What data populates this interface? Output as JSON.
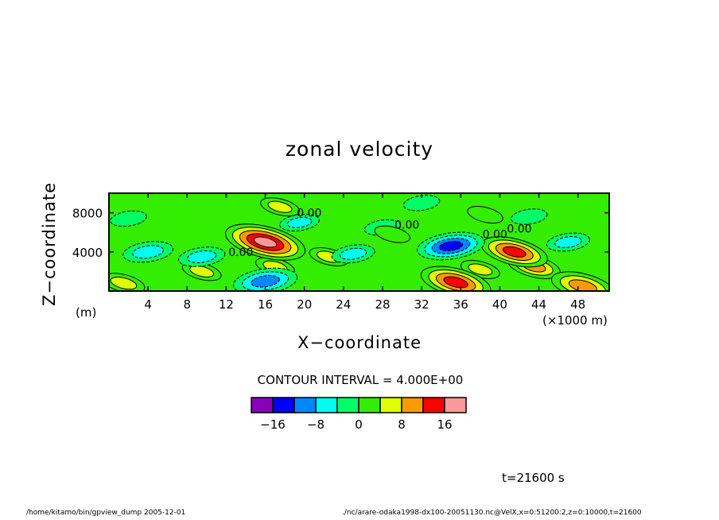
{
  "chart_data": {
    "type": "heatmap",
    "title": "zonal velocity",
    "xlabel": "X−coordinate",
    "ylabel": "Z−coordinate",
    "x_unit": "(×1000 m)",
    "y_unit": "(m)",
    "xlim": [
      0,
      51.2
    ],
    "ylim": [
      0,
      10000
    ],
    "x_ticks": [
      4,
      8,
      12,
      16,
      20,
      24,
      28,
      32,
      36,
      40,
      44,
      48
    ],
    "y_ticks": [
      4000,
      8000
    ],
    "contour_interval_text": "CONTOUR INTERVAL = 4.000E+00",
    "contour_labels": [
      "0.00",
      "0.00",
      "0.00",
      "0.00",
      "0.00"
    ],
    "colorbar": {
      "levels": [
        -20,
        -16,
        -12,
        -8,
        -4,
        0,
        4,
        8,
        12,
        16,
        20
      ],
      "colors": [
        "#8800bb",
        "#0000ff",
        "#0088ff",
        "#00ffee",
        "#00ff66",
        "#33ee00",
        "#ddff00",
        "#ff9900",
        "#ff0000",
        "#ff9999"
      ],
      "tick_values": [
        -16,
        -8,
        0,
        8,
        16
      ],
      "tick_labels": [
        "−16",
        "−8",
        "0",
        "8",
        "16"
      ]
    },
    "features": [
      {
        "x": 16.0,
        "z": 5000,
        "value": 17
      },
      {
        "x": 15.0,
        "z": 5500,
        "value": 10
      },
      {
        "x": 41.5,
        "z": 4000,
        "value": 13
      },
      {
        "x": 43.5,
        "z": 2500,
        "value": 9
      },
      {
        "x": 35.5,
        "z": 900,
        "value": 14
      },
      {
        "x": 48.5,
        "z": 500,
        "value": 12
      },
      {
        "x": 16.0,
        "z": 1000,
        "value": -12
      },
      {
        "x": 35.0,
        "z": 4600,
        "value": -13
      },
      {
        "x": 4.0,
        "z": 4000,
        "value": -8
      },
      {
        "x": 9.5,
        "z": 3500,
        "value": -7
      },
      {
        "x": 25.0,
        "z": 3800,
        "value": -6
      },
      {
        "x": 47.0,
        "z": 5000,
        "value": -6
      },
      {
        "x": 2.0,
        "z": 7400,
        "value": -4
      },
      {
        "x": 19.5,
        "z": 7000,
        "value": -5
      },
      {
        "x": 28.0,
        "z": 6500,
        "value": -4
      },
      {
        "x": 43.0,
        "z": 7600,
        "value": -4
      },
      {
        "x": 32.0,
        "z": 9000,
        "value": -4
      },
      {
        "x": 9.5,
        "z": 2000,
        "value": 5
      },
      {
        "x": 17.0,
        "z": 2500,
        "value": 5
      },
      {
        "x": 22.5,
        "z": 3500,
        "value": 5
      },
      {
        "x": 38.0,
        "z": 2200,
        "value": 5
      },
      {
        "x": 1.5,
        "z": 800,
        "value": 6
      },
      {
        "x": 29.0,
        "z": 5800,
        "value": 4
      },
      {
        "x": 17.5,
        "z": 8600,
        "value": 5
      },
      {
        "x": 38.5,
        "z": 7800,
        "value": 4
      }
    ]
  },
  "footer": {
    "time": "t=21600 s",
    "left": "/home/kitamo/bin/gpview_dump   2005-12-01",
    "right": "./nc/arare-odaka1998-dx100-20051130.nc@VelX,x=0:51200:2,z=0:10000,t=21600"
  }
}
